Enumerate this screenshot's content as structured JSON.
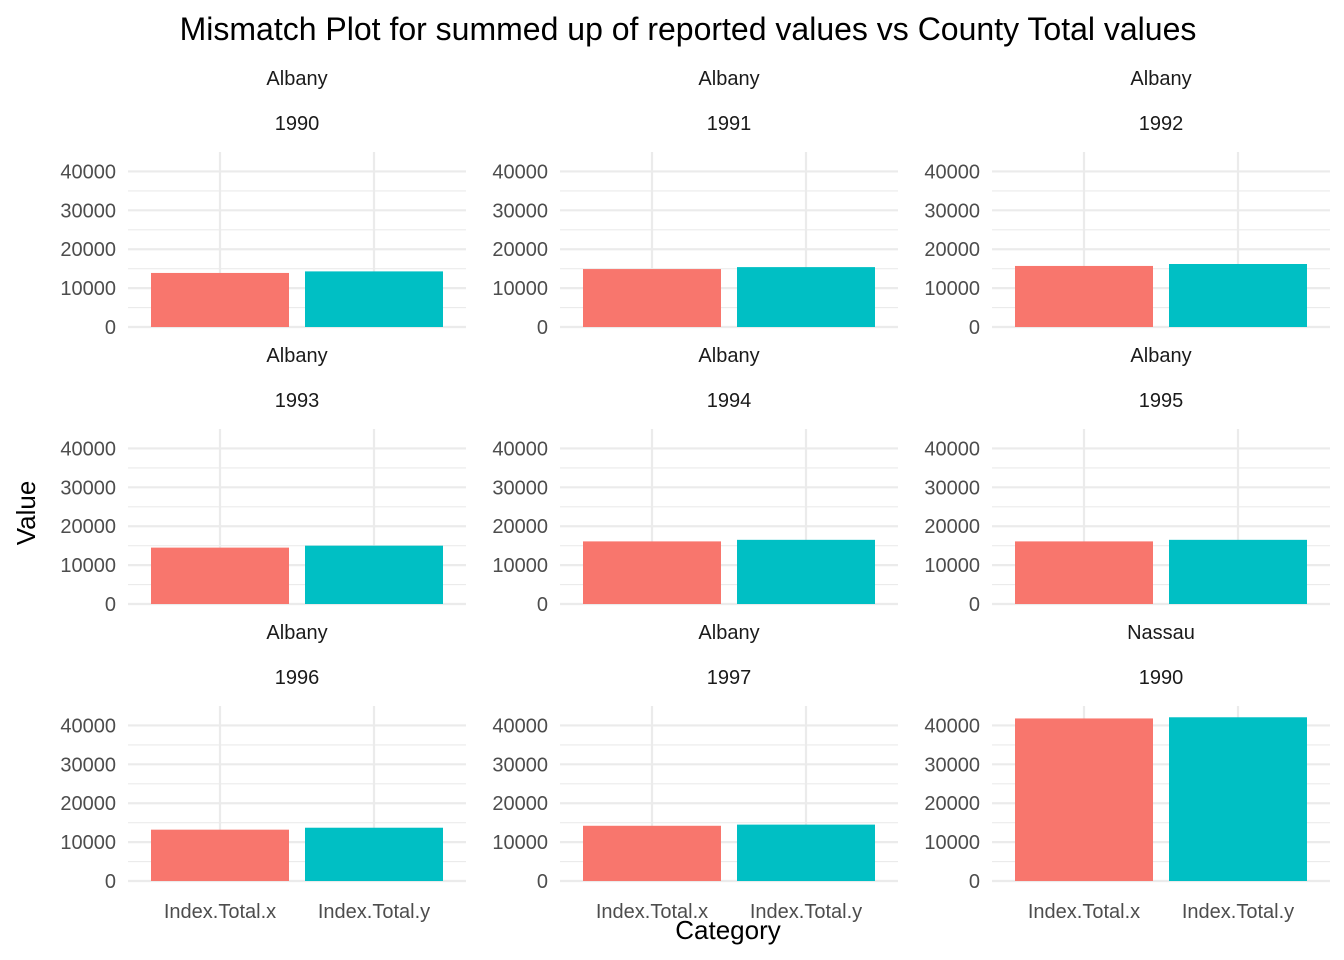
{
  "chart_data": {
    "type": "bar",
    "title": "Mismatch Plot for summed up of reported values vs County Total values",
    "xlabel": "Category",
    "ylabel": "Value",
    "categories": [
      "Index.Total.x",
      "Index.Total.y"
    ],
    "ylim": [
      0,
      45000
    ],
    "yticks": [
      0,
      10000,
      20000,
      30000,
      40000
    ],
    "yticks_labels": [
      "0",
      "10000",
      "20000",
      "30000",
      "40000"
    ],
    "grid": true,
    "legend": "none",
    "colors": {
      "Index.Total.x": "#F8766D",
      "Index.Total.y": "#00BFC4"
    },
    "facets": [
      {
        "county": "Albany",
        "year": "1990",
        "values": [
          13900,
          14300
        ]
      },
      {
        "county": "Albany",
        "year": "1991",
        "values": [
          14900,
          15400
        ]
      },
      {
        "county": "Albany",
        "year": "1992",
        "values": [
          15700,
          16200
        ]
      },
      {
        "county": "Albany",
        "year": "1993",
        "values": [
          14500,
          15000
        ]
      },
      {
        "county": "Albany",
        "year": "1994",
        "values": [
          16100,
          16500
        ]
      },
      {
        "county": "Albany",
        "year": "1995",
        "values": [
          16100,
          16500
        ]
      },
      {
        "county": "Albany",
        "year": "1996",
        "values": [
          13200,
          13700
        ]
      },
      {
        "county": "Albany",
        "year": "1997",
        "values": [
          14200,
          14500
        ]
      },
      {
        "county": "Nassau",
        "year": "1990",
        "values": [
          41800,
          42100
        ]
      }
    ]
  }
}
